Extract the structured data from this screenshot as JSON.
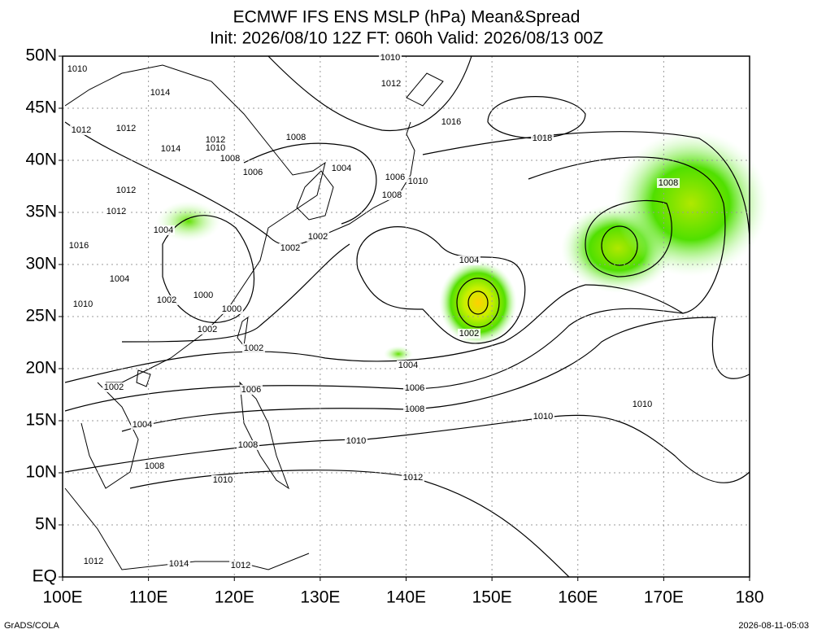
{
  "map": {
    "title": "ECMWF IFS ENS MSLP (hPa) Mean&Spread",
    "subtitle": "Init: 2026/08/10 12Z  FT: 060h  Valid: 2026/08/13 00Z",
    "lon_ticks": [
      {
        "value": 100,
        "label": "100E"
      },
      {
        "value": 110,
        "label": "110E"
      },
      {
        "value": 120,
        "label": "120E"
      },
      {
        "value": 130,
        "label": "130E"
      },
      {
        "value": 140,
        "label": "140E"
      },
      {
        "value": 150,
        "label": "150E"
      },
      {
        "value": 160,
        "label": "160E"
      },
      {
        "value": 170,
        "label": "170E"
      },
      {
        "value": 180,
        "label": "180"
      }
    ],
    "lat_ticks": [
      {
        "value": 0,
        "label": "EQ"
      },
      {
        "value": 5,
        "label": "5N"
      },
      {
        "value": 10,
        "label": "10N"
      },
      {
        "value": 15,
        "label": "15N"
      },
      {
        "value": 20,
        "label": "20N"
      },
      {
        "value": 25,
        "label": "25N"
      },
      {
        "value": 30,
        "label": "30N"
      },
      {
        "value": 35,
        "label": "35N"
      },
      {
        "value": 40,
        "label": "40N"
      },
      {
        "value": 45,
        "label": "45N"
      },
      {
        "value": 50,
        "label": "50N"
      }
    ],
    "contour_labels": [
      1010,
      1014,
      1012,
      1012,
      1014,
      1012,
      1010,
      1008,
      1006,
      1008,
      1004,
      1006,
      1010,
      1008,
      1012,
      1016,
      1018,
      1008,
      1010,
      1004,
      1002,
      1002,
      1004,
      1002,
      1004,
      1006,
      1008,
      1010,
      1010,
      1010,
      1012,
      1010,
      1008,
      1008,
      1006,
      1002,
      1002,
      1000,
      1000,
      1002,
      1004,
      1010,
      1002,
      1004,
      1012,
      1014,
      1012,
      1012,
      1012,
      1016
    ],
    "footer_left": "GrADS/COLA",
    "footer_right": "2026-08-11-05:03"
  }
}
